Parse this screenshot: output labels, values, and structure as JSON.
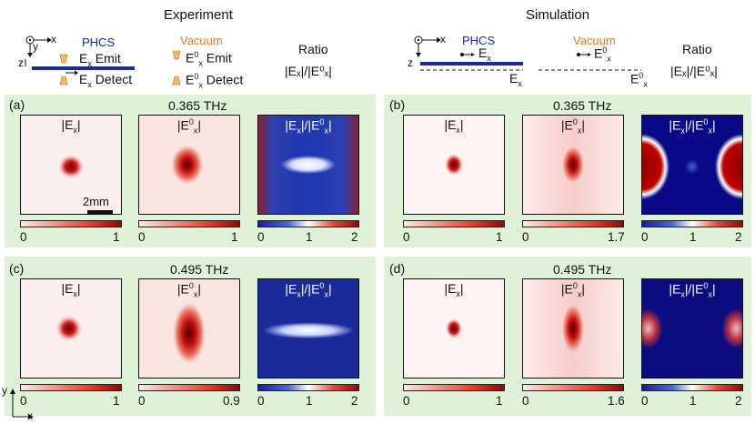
{
  "headers": {
    "experiment": "Experiment",
    "simulation": "Simulation"
  },
  "schematic": {
    "axis_x": "x",
    "axis_y": "y",
    "axis_z": "z",
    "phcs": "PHCS",
    "vacuum": "Vacuum",
    "ratio": "Ratio",
    "emit": "E",
    "emit_sub": "x",
    "emit_word": "Emit",
    "detect_word": "Detect",
    "e0_sup": "0",
    "ratio_formula": "|Eₓ|/|E⁰ₓ|"
  },
  "panels": [
    {
      "tag": "(a)",
      "freq": "0.365 THz",
      "maps": [
        {
          "title": "|Ex|",
          "ticks": [
            "0",
            "",
            "1"
          ],
          "cmap": "red"
        },
        {
          "title": "|E0x|",
          "ticks": [
            "0",
            "",
            "1"
          ],
          "cmap": "red"
        },
        {
          "title": "|Ex|/|E0x|",
          "ticks": [
            "0",
            "1",
            "2"
          ],
          "cmap": "bwr"
        }
      ],
      "scalebar": "2mm"
    },
    {
      "tag": "(b)",
      "freq": "0.365 THz",
      "maps": [
        {
          "title": "|Ex|",
          "ticks": [
            "0",
            "",
            "1"
          ],
          "cmap": "red"
        },
        {
          "title": "|E0x|",
          "ticks": [
            "0",
            "",
            "1.7"
          ],
          "cmap": "red"
        },
        {
          "title": "|Ex|/|E0x|",
          "ticks": [
            "0",
            "1",
            "2"
          ],
          "cmap": "bwr"
        }
      ]
    },
    {
      "tag": "(c)",
      "freq": "0.495 THz",
      "maps": [
        {
          "title": "|Ex|",
          "ticks": [
            "0",
            "",
            "1"
          ],
          "cmap": "red"
        },
        {
          "title": "|E0x|",
          "ticks": [
            "0",
            "",
            "0.9"
          ],
          "cmap": "red"
        },
        {
          "title": "|Ex|/|E0x|",
          "ticks": [
            "0",
            "1",
            "2"
          ],
          "cmap": "bwr"
        }
      ]
    },
    {
      "tag": "(d)",
      "freq": "0.495 THz",
      "maps": [
        {
          "title": "|Ex|",
          "ticks": [
            "0",
            "",
            "1"
          ],
          "cmap": "red"
        },
        {
          "title": "|E0x|",
          "ticks": [
            "0",
            "",
            "1.6"
          ],
          "cmap": "red"
        },
        {
          "title": "|Ex|/|E0x|",
          "ticks": [
            "0",
            "1",
            "2"
          ],
          "cmap": "bwr"
        }
      ]
    }
  ],
  "corner_axes": {
    "y": "y",
    "x": "x"
  }
}
